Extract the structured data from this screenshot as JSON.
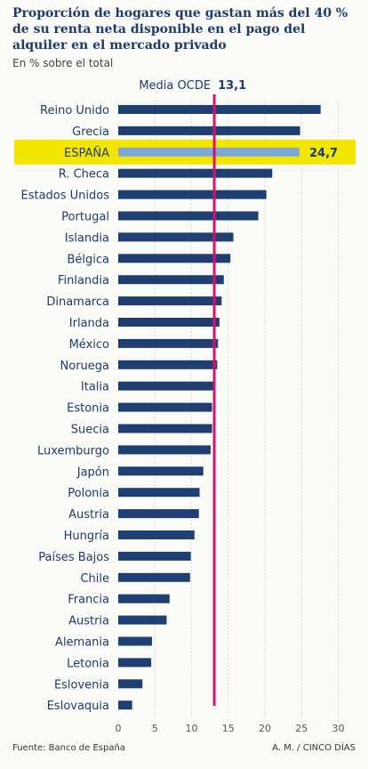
{
  "header": {
    "title": "Proporción de hogares que gastan más del 40 % de su renta neta disponible en el pago del alquiler en el mercado privado",
    "subtitle": "En % sobre el total"
  },
  "footer": {
    "source": "Fuente: Banco de España",
    "credit": "A. M. / CINCO DÍAS"
  },
  "chart_data": {
    "type": "bar",
    "orientation": "horizontal",
    "categories": [
      "Reino Unido",
      "Grecia",
      "ESPAÑA",
      "R. Checa",
      "Estados Unidos",
      "Portugal",
      "Islandia",
      "Bélgica",
      "Finlandia",
      "Dinamarca",
      "Irlanda",
      "México",
      "Noruega",
      "Italia",
      "Estonia",
      "Suecia",
      "Luxemburgo",
      "Japón",
      "Polonia",
      "Austria",
      "Hungría",
      "Países Bajos",
      "Chile",
      "Francia",
      "Austria",
      "Alemania",
      "Letonia",
      "Eslovenia",
      "Eslovaquia"
    ],
    "values": [
      27.6,
      24.8,
      24.7,
      21.0,
      20.2,
      19.1,
      15.7,
      15.3,
      14.4,
      14.1,
      13.8,
      13.6,
      13.5,
      13.0,
      12.8,
      12.8,
      12.6,
      11.6,
      11.1,
      11.0,
      10.4,
      9.9,
      9.8,
      7.0,
      6.6,
      4.6,
      4.5,
      3.3,
      1.9
    ],
    "highlight": {
      "category": "ESPAÑA",
      "label": "24,7",
      "color": "#f2e600",
      "bar_color": "#7fa7d6"
    },
    "reference_line": {
      "label": "Media OCDE",
      "value_label": "13,1",
      "value": 13.1,
      "color": "#d4146e"
    },
    "xlim": [
      0,
      30
    ],
    "xticks": [
      "0",
      "5",
      "10",
      "15",
      "20",
      "25",
      "30"
    ],
    "bar_color": "#1f3f73",
    "grid": true
  }
}
